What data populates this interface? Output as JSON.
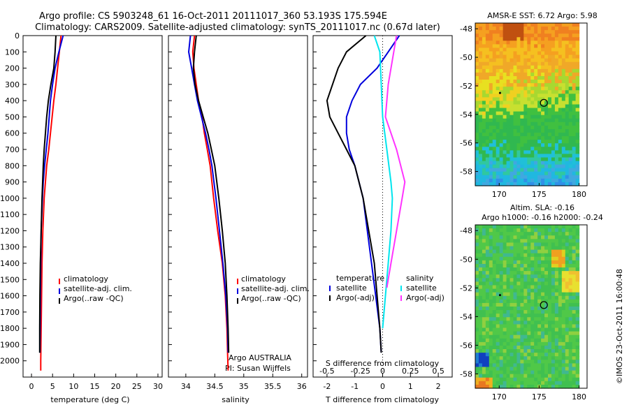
{
  "header": {
    "title_line1": "Argo profile: CS 5903248_61 16-Oct-2011 20111017_360 53.193S 175.594E",
    "title_line2": "Climatology: CARS2009. Satellite-adjusted climatology: synTS_20111017.nc (0.67d later)"
  },
  "timestamp": "©IMOS 23-Oct-2011 16:00:48",
  "colors": {
    "climatology": "#ff0000",
    "satellite": "#0000dd",
    "argo": "#000000",
    "sat_salinity": "#00e5ee",
    "argo_salinity": "#ff33ff"
  },
  "chart_data": [
    {
      "type": "line",
      "panel": "temperature",
      "xlabel": "temperature (deg C)",
      "ylabel": "",
      "xlim": [
        -2,
        31
      ],
      "ylim": [
        2100,
        0
      ],
      "xticks": [
        0,
        5,
        10,
        15,
        20,
        25,
        30
      ],
      "yticks": [
        0,
        100,
        200,
        300,
        400,
        500,
        600,
        700,
        800,
        900,
        1000,
        1100,
        1200,
        1300,
        1400,
        1500,
        1600,
        1700,
        1800,
        1900,
        2000
      ],
      "legend": [
        "climatology",
        "satellite-adj. clim.",
        "Argo(..raw -QC)"
      ],
      "series": [
        {
          "name": "climatology",
          "color": "climatology",
          "x": [
            7.0,
            6.6,
            6.2,
            5.8,
            5.3,
            4.9,
            4.5,
            4.1,
            3.6,
            3.3,
            3.0,
            2.7,
            2.5,
            2.4,
            2.3,
            2.25,
            2.2,
            2.2
          ],
          "y": [
            0,
            100,
            200,
            300,
            400,
            500,
            600,
            700,
            800,
            900,
            1000,
            1200,
            1400,
            1600,
            1800,
            1900,
            2000,
            2060
          ]
        },
        {
          "name": "satellite-adj. clim.",
          "color": "satellite",
          "x": [
            7.5,
            6.5,
            5.6,
            5.0,
            4.5,
            4.2,
            3.9,
            3.5,
            3.1,
            2.8,
            2.6,
            2.3,
            2.2,
            2.1,
            2.05,
            2.0
          ],
          "y": [
            0,
            100,
            200,
            300,
            400,
            500,
            600,
            700,
            800,
            900,
            1000,
            1200,
            1400,
            1600,
            1800,
            1950
          ]
        },
        {
          "name": "Argo(..raw -QC)",
          "color": "argo",
          "x": [
            5.8,
            5.6,
            5.3,
            4.6,
            4.0,
            3.6,
            3.3,
            3.0,
            2.8,
            2.5,
            2.3,
            2.1,
            2.0,
            1.95,
            1.95
          ],
          "y": [
            0,
            100,
            200,
            300,
            400,
            500,
            600,
            700,
            800,
            1000,
            1200,
            1400,
            1600,
            1800,
            1950
          ]
        }
      ]
    },
    {
      "type": "line",
      "panel": "salinity",
      "xlabel": "salinity",
      "xlim": [
        33.7,
        36.1
      ],
      "ylim": [
        2100,
        0
      ],
      "xticks": [
        34,
        34.5,
        35,
        35.5,
        36
      ],
      "legend": [
        "climatology",
        "satellite-adj. clim.",
        "Argo(..raw -QC)"
      ],
      "annotation": [
        "Argo AUSTRALIA",
        "PI: Susan Wijffels"
      ],
      "series": [
        {
          "name": "climatology",
          "color": "climatology",
          "x": [
            34.15,
            34.12,
            34.14,
            34.18,
            34.22,
            34.28,
            34.32,
            34.37,
            34.42,
            34.48,
            34.55,
            34.63,
            34.68,
            34.71,
            34.72,
            34.73
          ],
          "y": [
            0,
            100,
            200,
            300,
            400,
            500,
            600,
            700,
            800,
            1000,
            1200,
            1400,
            1600,
            1800,
            1950,
            2060
          ]
        },
        {
          "name": "satellite-adj. clim.",
          "color": "satellite",
          "x": [
            34.08,
            34.05,
            34.1,
            34.15,
            34.2,
            34.27,
            34.34,
            34.4,
            34.45,
            34.52,
            34.58,
            34.64,
            34.69,
            34.72,
            34.73
          ],
          "y": [
            0,
            100,
            200,
            300,
            400,
            500,
            600,
            700,
            800,
            1000,
            1200,
            1400,
            1600,
            1800,
            1950
          ]
        },
        {
          "name": "Argo(..raw -QC)",
          "color": "argo",
          "x": [
            34.18,
            34.15,
            34.13,
            34.16,
            34.22,
            34.3,
            34.38,
            34.44,
            34.5,
            34.57,
            34.63,
            34.68,
            34.71,
            34.73,
            34.74
          ],
          "y": [
            0,
            100,
            200,
            300,
            400,
            500,
            600,
            700,
            800,
            1000,
            1200,
            1400,
            1600,
            1800,
            1950
          ]
        }
      ]
    },
    {
      "type": "line",
      "panel": "differences",
      "xlabel": "T difference from climatology",
      "xlabel_top": "S difference from climatology",
      "xlim": [
        -2.5,
        2.5
      ],
      "ylim": [
        2100,
        0
      ],
      "xticks": [
        -2,
        -1,
        0,
        1,
        2
      ],
      "xticks_salinity": [
        "-0.5",
        "-0.25",
        "0",
        "0.25",
        "0.5"
      ],
      "legend_left": [
        "temperature",
        "satellite",
        "Argo(-adj)"
      ],
      "legend_right": [
        "salinity",
        "satellite",
        "Argo(-adj)"
      ],
      "series": [
        {
          "name": "temperature satellite",
          "color": "satellite",
          "x": [
            0.6,
            0.2,
            -0.2,
            -0.8,
            -1.1,
            -1.3,
            -1.3,
            -1.2,
            -1.0,
            -0.7,
            -0.4,
            -0.1,
            -0.05
          ],
          "y": [
            0,
            100,
            200,
            300,
            400,
            500,
            600,
            700,
            800,
            1000,
            1400,
            1800,
            1950
          ]
        },
        {
          "name": "temperature Argo(-adj)",
          "color": "argo",
          "x": [
            -0.6,
            -1.3,
            -1.6,
            -2.0,
            -1.9,
            -1.6,
            -1.3,
            -1.0,
            -0.7,
            -0.3,
            -0.1,
            -0.05
          ],
          "y": [
            0,
            100,
            200,
            400,
            500,
            600,
            700,
            800,
            1000,
            1400,
            1800,
            1950
          ]
        },
        {
          "name": "salinity satellite",
          "color": "sat_salinity",
          "x": [
            -0.3,
            -0.1,
            -0.05,
            0.0,
            0.15,
            0.3,
            0.35,
            0.3,
            0.2,
            0.1,
            0.0
          ],
          "y": [
            0,
            100,
            300,
            500,
            700,
            900,
            1000,
            1200,
            1400,
            1600,
            1800
          ]
        },
        {
          "name": "salinity Argo(-adj)",
          "color": "argo_salinity",
          "x": [
            0.5,
            0.4,
            0.2,
            0.1,
            0.5,
            0.8,
            0.7,
            0.5,
            0.3,
            0.15
          ],
          "y": [
            0,
            100,
            300,
            500,
            700,
            900,
            1000,
            1200,
            1400,
            1550
          ]
        }
      ]
    },
    {
      "type": "heatmap",
      "panel": "sst_map",
      "title": "AMSR-E SST: 6.72 Argo: 5.98",
      "xticks": [
        170,
        175,
        180
      ],
      "yticks": [
        -48,
        -50,
        -52,
        -54,
        -56,
        -58
      ],
      "xlim": [
        167,
        181
      ],
      "ylim": [
        -59,
        -47.6
      ],
      "float_position": {
        "lon": 175.594,
        "lat": -53.193
      }
    },
    {
      "type": "heatmap",
      "panel": "sla_map",
      "title_line1": "Altim. SLA: -0.16",
      "title_line2": "Argo h1000: -0.16 h2000: -0.24",
      "xticks": [
        170,
        175,
        180
      ],
      "yticks": [
        -48,
        -50,
        -52,
        -54,
        -56,
        -58
      ],
      "xlim": [
        167,
        181
      ],
      "ylim": [
        -59,
        -47.6
      ],
      "float_position": {
        "lon": 175.594,
        "lat": -53.193
      }
    }
  ]
}
